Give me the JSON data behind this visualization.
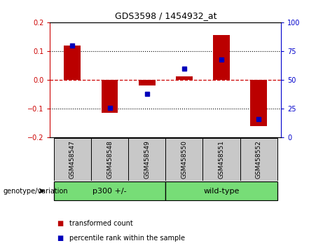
{
  "title": "GDS3598 / 1454932_at",
  "samples": [
    "GSM458547",
    "GSM458548",
    "GSM458549",
    "GSM458550",
    "GSM458551",
    "GSM458552"
  ],
  "red_values": [
    0.12,
    -0.115,
    -0.018,
    0.013,
    0.155,
    -0.16
  ],
  "blue_values_raw": [
    80,
    26,
    38,
    60,
    68,
    16
  ],
  "groups": [
    {
      "label": "p300 +/-",
      "span": [
        0,
        2
      ]
    },
    {
      "label": "wild-type",
      "span": [
        3,
        5
      ]
    }
  ],
  "ylim_left": [
    -0.2,
    0.2
  ],
  "ylim_right": [
    0,
    100
  ],
  "left_yticks": [
    -0.2,
    -0.1,
    0.0,
    0.1,
    0.2
  ],
  "right_yticks": [
    0,
    25,
    50,
    75,
    100
  ],
  "left_color": "#CC0000",
  "right_color": "#0000CC",
  "bar_color": "#BB0000",
  "dot_color": "#0000BB",
  "zero_line_color": "#CC0000",
  "group_color": "#77DD77",
  "tick_bg_color": "#C8C8C8",
  "legend_items": [
    "transformed count",
    "percentile rank within the sample"
  ],
  "group_label": "genotype/variation"
}
